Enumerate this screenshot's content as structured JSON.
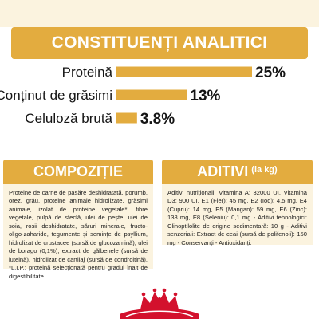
{
  "header": {
    "title": "CONSTITUENȚI ANALITICI"
  },
  "chart_data": {
    "type": "bar",
    "orientation": "horizontal",
    "categories": [
      "Proteină",
      "Conținut de grăsimi",
      "Celuloză brută"
    ],
    "values": [
      25,
      13,
      3.8
    ],
    "value_labels": [
      "25%",
      "13%",
      "3.8%"
    ],
    "xlim": [
      0,
      25
    ],
    "grid": false
  },
  "composition": {
    "title": "COMPOZIȚIE",
    "text": "Proteine de carne de pasăre deshidratată, porumb, orez, grâu, proteine animale hidrolizate, grăsimi animale, izolat de proteine vegetale*, fibre vegetale, pulpă de sfeclă, ulei de pește, ulei de soia, roșii deshidratate, săruri minerale, fructo-oligo-zaharide, tegumente și semințe de psyllium, hidrolizat de crustacee (sursă de glucozamină), ulei de borago (0,1%), extract de gălbenele (sursă de luteină), hidrolizat de cartilaj (sursă de condroitină). *L.I.P.: proteină selecționată pentru gradul înalt de digestibilitate."
  },
  "additives": {
    "title": "ADITIVI",
    "unit": "(la kg)",
    "text": "Aditivi nutriționali: Vitamina A: 32000 UI, Vitamina D3: 900 UI, E1 (Fier): 45 mg, E2 (Iod): 4,5 mg, E4 (Cupru): 14 mg, E5 (Mangan): 59 mg, E6 (Zinc): 138 mg, E8 (Seleniu): 0,1 mg - Aditivi tehnologici: Clinoptilolite de origine sedimentară: 10 g - Aditivi senzoriali: Extract de ceai (sursă de polifenoli): 150 mg - Conservanți - Antioxidanți."
  },
  "logo": {
    "name": "royal-canin-crown-logo"
  },
  "colors": {
    "accent": "#e3ac3f",
    "panel": "#fbf3df",
    "logo_red": "#d3112d",
    "text": "#1a1a1a"
  }
}
